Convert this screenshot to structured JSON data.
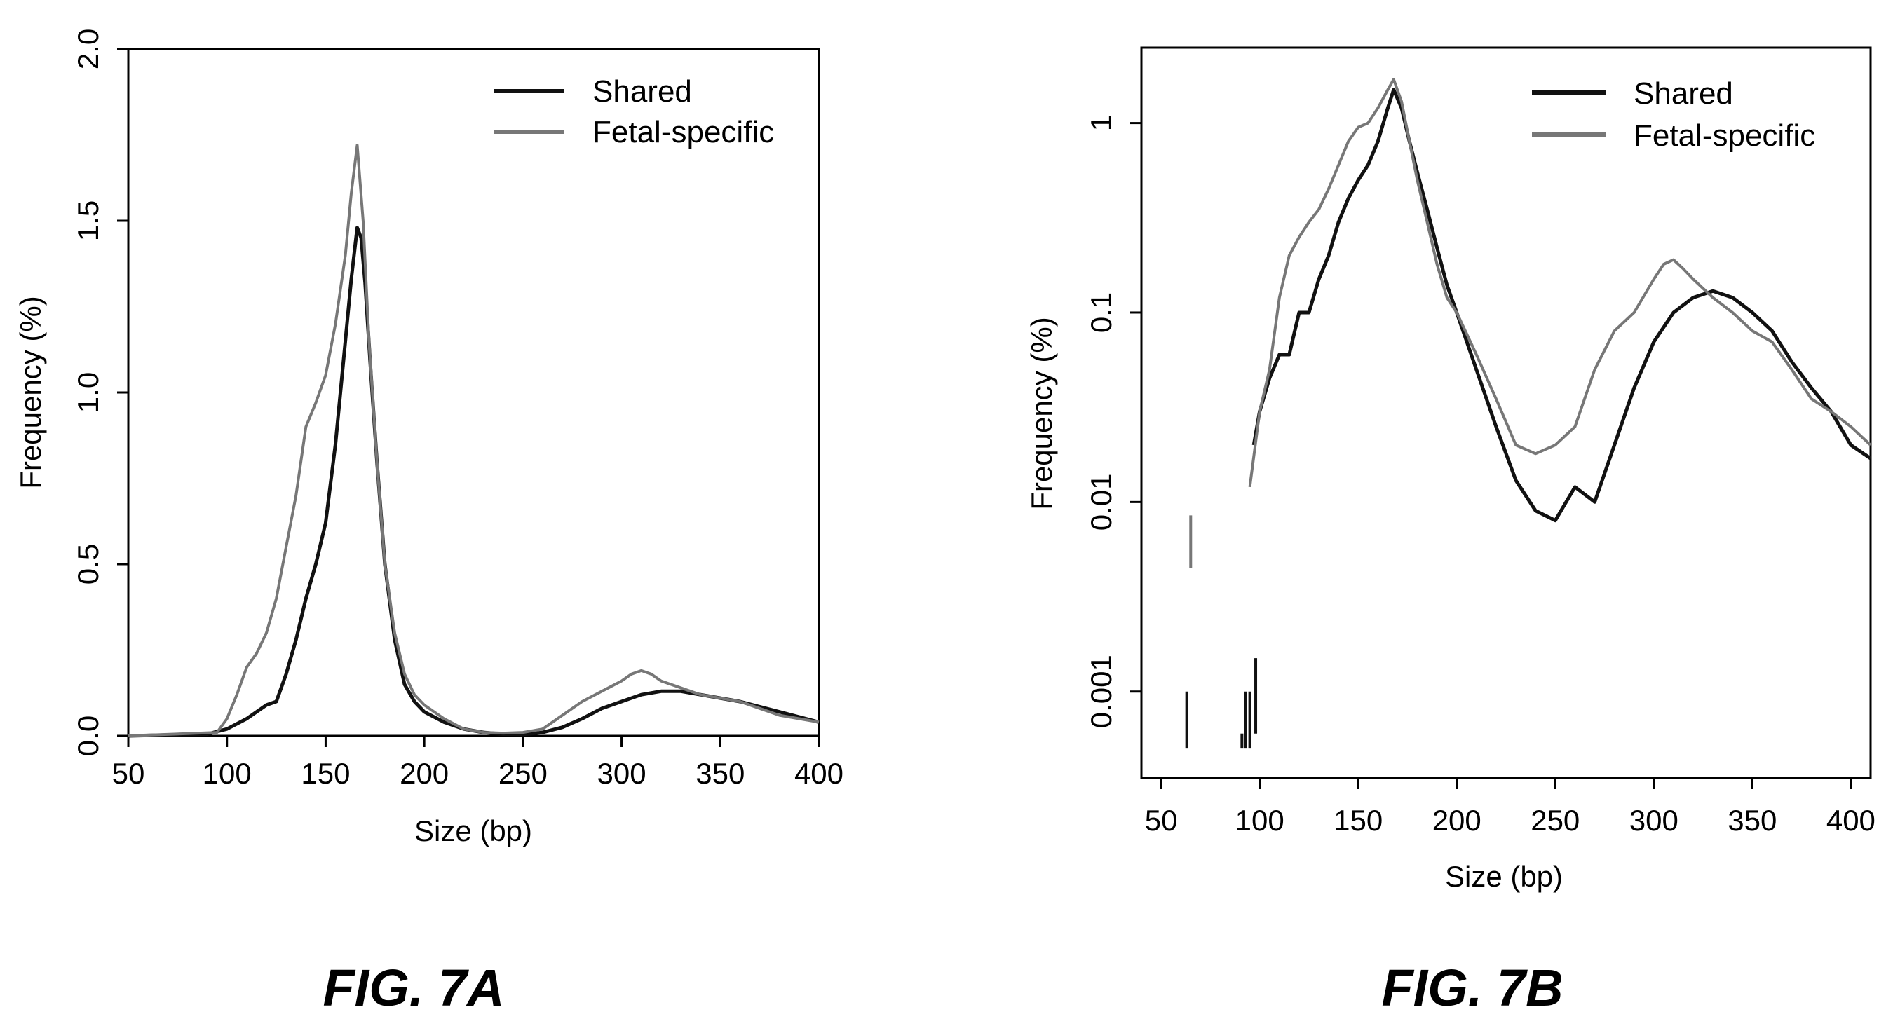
{
  "chart_data": [
    {
      "type": "line",
      "caption": "FIG. 7A",
      "xlabel": "Size (bp)",
      "ylabel": "Frequency (%)",
      "xlim": [
        50,
        400
      ],
      "ylim": [
        0,
        2.0
      ],
      "y_scale": "linear",
      "xticks": [
        50,
        100,
        150,
        200,
        250,
        300,
        350,
        400
      ],
      "xtick_labels": [
        "50",
        "100",
        "150",
        "200",
        "250",
        "300",
        "350",
        "400"
      ],
      "yticks": [
        0,
        0.5,
        1.0,
        1.5,
        2.0
      ],
      "ytick_labels": [
        "0.0",
        "0.5",
        "1.0",
        "1.5",
        "2.0"
      ],
      "grid": false,
      "legend_position": "top-right",
      "series": [
        {
          "name": "Shared",
          "color": "#111111",
          "x": [
            50,
            90,
            100,
            110,
            120,
            125,
            130,
            135,
            140,
            145,
            150,
            155,
            160,
            163,
            166,
            168,
            170,
            173,
            176,
            180,
            185,
            190,
            195,
            200,
            210,
            220,
            230,
            240,
            250,
            260,
            270,
            280,
            290,
            300,
            310,
            320,
            330,
            340,
            350,
            360,
            370,
            380,
            390,
            400
          ],
          "y": [
            0,
            0.005,
            0.02,
            0.05,
            0.09,
            0.1,
            0.18,
            0.28,
            0.4,
            0.5,
            0.62,
            0.85,
            1.15,
            1.33,
            1.48,
            1.45,
            1.32,
            1.05,
            0.8,
            0.5,
            0.28,
            0.15,
            0.1,
            0.07,
            0.04,
            0.02,
            0.01,
            0.005,
            0.004,
            0.01,
            0.025,
            0.05,
            0.08,
            0.1,
            0.12,
            0.13,
            0.13,
            0.12,
            0.11,
            0.1,
            0.085,
            0.07,
            0.055,
            0.04
          ]
        },
        {
          "name": "Fetal-specific",
          "color": "#777777",
          "x": [
            50,
            95,
            100,
            105,
            110,
            115,
            120,
            125,
            130,
            135,
            140,
            145,
            150,
            155,
            160,
            163,
            166,
            169,
            172,
            176,
            180,
            185,
            190,
            195,
            200,
            210,
            220,
            230,
            240,
            250,
            260,
            270,
            280,
            290,
            300,
            305,
            310,
            315,
            320,
            330,
            340,
            350,
            360,
            370,
            380,
            390,
            400
          ],
          "y": [
            0,
            0.01,
            0.05,
            0.12,
            0.2,
            0.24,
            0.3,
            0.4,
            0.55,
            0.7,
            0.9,
            0.97,
            1.05,
            1.2,
            1.4,
            1.58,
            1.72,
            1.5,
            1.15,
            0.8,
            0.5,
            0.3,
            0.18,
            0.12,
            0.09,
            0.05,
            0.02,
            0.01,
            0.008,
            0.01,
            0.02,
            0.06,
            0.1,
            0.13,
            0.16,
            0.18,
            0.19,
            0.18,
            0.16,
            0.14,
            0.12,
            0.11,
            0.1,
            0.08,
            0.06,
            0.05,
            0.04
          ]
        }
      ]
    },
    {
      "type": "line",
      "caption": "FIG. 7B",
      "xlabel": "Size (bp)",
      "ylabel": "Frequency (%)",
      "xlim": [
        40,
        410
      ],
      "ylim": [
        0.00035,
        2.5
      ],
      "y_scale": "log",
      "xticks": [
        50,
        100,
        150,
        200,
        250,
        300,
        350,
        400
      ],
      "xtick_labels": [
        "50",
        "100",
        "150",
        "200",
        "250",
        "300",
        "350",
        "400"
      ],
      "yticks": [
        0.001,
        0.01,
        0.1,
        1
      ],
      "ytick_labels": [
        "0.001",
        "0.01",
        "0.1",
        "1"
      ],
      "grid": false,
      "legend_position": "top-right",
      "series": [
        {
          "name": "Shared",
          "color": "#111111",
          "x": [
            97,
            100,
            105,
            110,
            115,
            120,
            125,
            130,
            135,
            140,
            145,
            150,
            155,
            160,
            165,
            168,
            172,
            176,
            180,
            185,
            190,
            195,
            200,
            210,
            220,
            230,
            240,
            250,
            260,
            270,
            280,
            290,
            300,
            310,
            320,
            330,
            340,
            350,
            360,
            370,
            380,
            390,
            400,
            410
          ],
          "y": [
            0.02,
            0.03,
            0.045,
            0.06,
            0.06,
            0.1,
            0.1,
            0.15,
            0.2,
            0.3,
            0.4,
            0.5,
            0.6,
            0.8,
            1.2,
            1.5,
            1.2,
            0.8,
            0.55,
            0.35,
            0.22,
            0.14,
            0.1,
            0.05,
            0.025,
            0.013,
            0.009,
            0.008,
            0.012,
            0.01,
            0.02,
            0.04,
            0.07,
            0.1,
            0.12,
            0.13,
            0.12,
            0.1,
            0.08,
            0.055,
            0.04,
            0.03,
            0.02,
            0.017
          ]
        },
        {
          "name": "Fetal-specific",
          "color": "#777777",
          "x": [
            95,
            100,
            105,
            110,
            115,
            120,
            125,
            130,
            135,
            140,
            145,
            150,
            155,
            160,
            165,
            168,
            172,
            176,
            180,
            185,
            190,
            195,
            200,
            210,
            220,
            230,
            240,
            250,
            260,
            270,
            280,
            290,
            300,
            305,
            310,
            315,
            320,
            330,
            340,
            350,
            360,
            370,
            380,
            390,
            400,
            410
          ],
          "y": [
            0.012,
            0.03,
            0.05,
            0.12,
            0.2,
            0.25,
            0.3,
            0.35,
            0.45,
            0.6,
            0.8,
            0.95,
            1.0,
            1.2,
            1.5,
            1.7,
            1.3,
            0.8,
            0.5,
            0.3,
            0.18,
            0.12,
            0.1,
            0.06,
            0.035,
            0.02,
            0.018,
            0.02,
            0.025,
            0.05,
            0.08,
            0.1,
            0.15,
            0.18,
            0.19,
            0.17,
            0.15,
            0.12,
            0.1,
            0.08,
            0.07,
            0.05,
            0.035,
            0.03,
            0.025,
            0.02
          ]
        }
      ],
      "annotations": {
        "fetal_isolated_segments": [
          {
            "x": 65,
            "y1": 0.0045,
            "y2": 0.0085
          }
        ],
        "shared_isolated_segments": [
          {
            "x": 63,
            "y1": 0.0005,
            "y2": 0.001
          },
          {
            "x": 91,
            "y1": 0.0005,
            "y2": 0.0006
          },
          {
            "x": 93,
            "y1": 0.0005,
            "y2": 0.001
          },
          {
            "x": 95,
            "y1": 0.0005,
            "y2": 0.001
          },
          {
            "x": 98,
            "y1": 0.0006,
            "y2": 0.0015
          }
        ]
      }
    }
  ]
}
